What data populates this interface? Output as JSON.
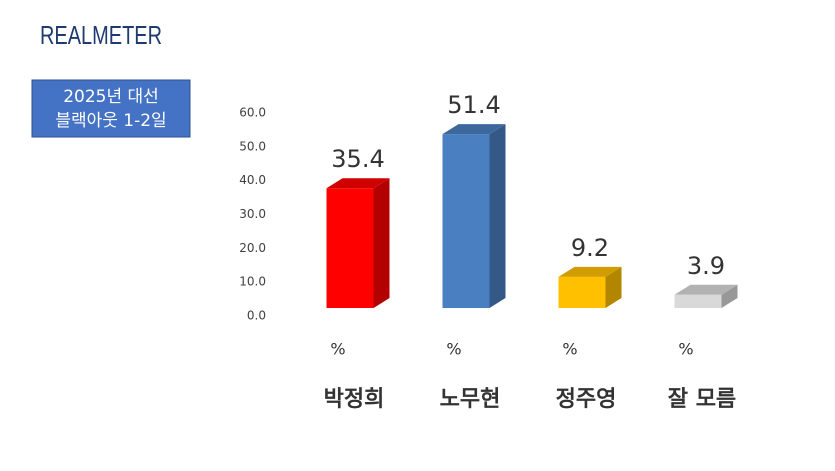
{
  "brand": "REALMETER",
  "chart_data": {
    "type": "bar3d",
    "subtitle_lines": [
      "2025년 대선",
      "블랙아웃 1-2일"
    ],
    "categories": [
      "박정희",
      "노무현",
      "정주영",
      "잘 모름"
    ],
    "values": [
      35.4,
      51.4,
      9.2,
      3.9
    ],
    "unit": "%",
    "colors": [
      "#ff0000",
      "#4a7fc1",
      "#ffc000",
      "#d9d9d9"
    ],
    "ylim": [
      0,
      60
    ],
    "yticks": [
      {
        "value": 0,
        "label": "0.0"
      },
      {
        "value": 10,
        "label": "10.0"
      },
      {
        "value": 20,
        "label": "20.0"
      },
      {
        "value": 30,
        "label": "30.0"
      },
      {
        "value": 40,
        "label": "40.0"
      },
      {
        "value": 50,
        "label": "50.0"
      },
      {
        "value": 60,
        "label": "60.0"
      }
    ]
  }
}
